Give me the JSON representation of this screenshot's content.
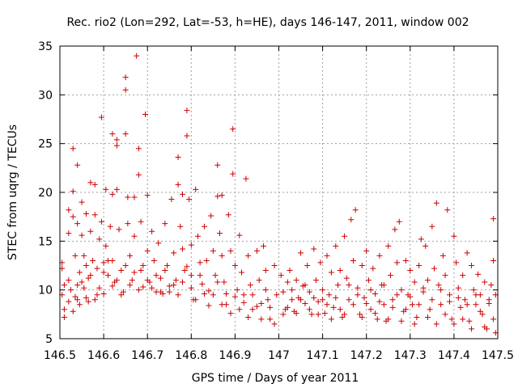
{
  "chart_data": {
    "type": "scatter",
    "title": "Rec. rio2 (Lon=292, Lat=-53, h=HE), days 146-147, 2011, window 002",
    "xlabel": "GPS time / Days of year 2011",
    "ylabel": "STEC from uqrg / TECUs",
    "xlim": [
      146.5,
      147.5
    ],
    "ylim": [
      5,
      35
    ],
    "xticks": [
      146.5,
      146.6,
      146.7,
      146.8,
      146.9,
      147.0,
      147.1,
      147.2,
      147.3,
      147.4,
      147.5
    ],
    "xtick_labels": [
      "146.5",
      "146.6",
      "146.7",
      "146.8",
      "146.9",
      "147",
      "147.1",
      "147.2",
      "147.3",
      "147.4",
      "147.5"
    ],
    "yticks": [
      5,
      10,
      15,
      20,
      25,
      30,
      35
    ],
    "ytick_labels": [
      "5",
      "10",
      "15",
      "20",
      "25",
      "30",
      "35"
    ],
    "grid": true,
    "marker": "plus",
    "point_color": "#cc0000",
    "points": [
      [
        146.505,
        12.8
      ],
      [
        146.505,
        12.2
      ],
      [
        146.505,
        9.5
      ],
      [
        146.51,
        8.0
      ],
      [
        146.51,
        7.2
      ],
      [
        146.52,
        18.2
      ],
      [
        146.52,
        15.8
      ],
      [
        146.52,
        11.0
      ],
      [
        146.525,
        10.0
      ],
      [
        146.53,
        24.5
      ],
      [
        146.53,
        20.1
      ],
      [
        146.53,
        17.5
      ],
      [
        146.535,
        13.5
      ],
      [
        146.535,
        9.3
      ],
      [
        146.54,
        22.8
      ],
      [
        146.54,
        16.8
      ],
      [
        146.54,
        10.5
      ],
      [
        146.545,
        11.8
      ],
      [
        146.545,
        8.5
      ],
      [
        146.55,
        19.0
      ],
      [
        146.55,
        15.6
      ],
      [
        146.555,
        13.5
      ],
      [
        146.555,
        10.2
      ],
      [
        146.56,
        17.8
      ],
      [
        146.56,
        12.5
      ],
      [
        146.565,
        11.2
      ],
      [
        146.565,
        8.8
      ],
      [
        146.57,
        21.0
      ],
      [
        146.57,
        16.0
      ],
      [
        146.575,
        13.0
      ],
      [
        146.58,
        20.8
      ],
      [
        146.58,
        17.7
      ],
      [
        146.585,
        12.2
      ],
      [
        146.585,
        9.5
      ],
      [
        146.59,
        15.2
      ],
      [
        146.595,
        27.7
      ],
      [
        146.595,
        17.0
      ],
      [
        146.6,
        12.8
      ],
      [
        146.6,
        9.6
      ],
      [
        146.605,
        20.3
      ],
      [
        146.605,
        14.5
      ],
      [
        146.61,
        11.5
      ],
      [
        146.615,
        16.5
      ],
      [
        146.62,
        26.0
      ],
      [
        146.62,
        19.8
      ],
      [
        146.62,
        13.0
      ],
      [
        146.625,
        10.8
      ],
      [
        146.63,
        25.4
      ],
      [
        146.63,
        24.8
      ],
      [
        146.63,
        20.3
      ],
      [
        146.635,
        16.2
      ],
      [
        146.64,
        12.0
      ],
      [
        146.645,
        9.8
      ],
      [
        146.65,
        31.8
      ],
      [
        146.65,
        30.5
      ],
      [
        146.65,
        26.0
      ],
      [
        146.655,
        19.5
      ],
      [
        146.655,
        16.8
      ],
      [
        146.66,
        13.5
      ],
      [
        146.665,
        11.0
      ],
      [
        146.67,
        19.5
      ],
      [
        146.67,
        15.5
      ],
      [
        146.675,
        34.0
      ],
      [
        146.68,
        24.5
      ],
      [
        146.68,
        21.8
      ],
      [
        146.685,
        17.0
      ],
      [
        146.685,
        12.0
      ],
      [
        146.69,
        10.3
      ],
      [
        146.695,
        28.0
      ],
      [
        146.7,
        19.7
      ],
      [
        146.7,
        14.0
      ],
      [
        146.705,
        10.8
      ],
      [
        146.71,
        16.0
      ],
      [
        146.715,
        13.0
      ],
      [
        146.72,
        9.8
      ],
      [
        146.725,
        14.8
      ],
      [
        146.73,
        11.2
      ],
      [
        146.735,
        9.6
      ],
      [
        146.74,
        16.8
      ],
      [
        146.745,
        12.5
      ],
      [
        146.75,
        10.4
      ],
      [
        146.755,
        19.3
      ],
      [
        146.76,
        13.8
      ],
      [
        146.765,
        11.0
      ],
      [
        146.77,
        23.6
      ],
      [
        146.77,
        20.8
      ],
      [
        146.775,
        16.5
      ],
      [
        146.78,
        19.8
      ],
      [
        146.78,
        14.2
      ],
      [
        146.785,
        12.0
      ],
      [
        146.79,
        28.4
      ],
      [
        146.79,
        25.8
      ],
      [
        146.795,
        19.3
      ],
      [
        146.8,
        14.6
      ],
      [
        146.8,
        11.5
      ],
      [
        146.805,
        9.0
      ],
      [
        146.81,
        20.3
      ],
      [
        146.815,
        15.5
      ],
      [
        146.82,
        12.8
      ],
      [
        146.825,
        10.6
      ],
      [
        146.83,
        16.5
      ],
      [
        146.835,
        13.0
      ],
      [
        146.84,
        9.9
      ],
      [
        146.845,
        17.6
      ],
      [
        146.85,
        14.0
      ],
      [
        146.855,
        11.5
      ],
      [
        146.86,
        22.8
      ],
      [
        146.86,
        19.6
      ],
      [
        146.865,
        15.8
      ],
      [
        146.87,
        19.7
      ],
      [
        146.87,
        13.5
      ],
      [
        146.875,
        10.8
      ],
      [
        146.88,
        8.5
      ],
      [
        146.885,
        17.7
      ],
      [
        146.89,
        14.0
      ],
      [
        146.895,
        26.5
      ],
      [
        146.895,
        21.9
      ],
      [
        146.9,
        12.5
      ],
      [
        146.905,
        10.0
      ],
      [
        146.91,
        15.6
      ],
      [
        146.915,
        11.8
      ],
      [
        146.92,
        8.7
      ],
      [
        146.925,
        21.4
      ],
      [
        146.93,
        13.5
      ],
      [
        146.935,
        10.5
      ],
      [
        146.94,
        8.0
      ],
      [
        146.95,
        14.0
      ],
      [
        146.955,
        11.0
      ],
      [
        146.96,
        8.6
      ],
      [
        146.965,
        14.5
      ],
      [
        146.97,
        12.0
      ],
      [
        146.975,
        9.0
      ],
      [
        146.98,
        7.0
      ],
      [
        146.99,
        12.5
      ],
      [
        146.995,
        9.5
      ],
      [
        146.51,
        10.5
      ],
      [
        146.52,
        8.8
      ],
      [
        146.53,
        7.8
      ],
      [
        146.54,
        9.0
      ],
      [
        146.55,
        10.8
      ],
      [
        146.56,
        9.2
      ],
      [
        146.57,
        11.5
      ],
      [
        146.58,
        9.0
      ],
      [
        146.59,
        10.2
      ],
      [
        146.6,
        11.8
      ],
      [
        146.61,
        13.0
      ],
      [
        146.62,
        10.4
      ],
      [
        146.63,
        11.0
      ],
      [
        146.64,
        9.5
      ],
      [
        146.65,
        12.5
      ],
      [
        146.66,
        10.5
      ],
      [
        146.67,
        11.8
      ],
      [
        146.68,
        10.0
      ],
      [
        146.69,
        12.5
      ],
      [
        146.7,
        11.0
      ],
      [
        146.71,
        10.2
      ],
      [
        146.72,
        11.5
      ],
      [
        146.73,
        9.8
      ],
      [
        146.74,
        12.0
      ],
      [
        146.75,
        9.8
      ],
      [
        146.76,
        10.5
      ],
      [
        146.77,
        9.5
      ],
      [
        146.78,
        10.8
      ],
      [
        146.79,
        12.4
      ],
      [
        146.8,
        10.2
      ],
      [
        146.81,
        9.0
      ],
      [
        146.82,
        11.5
      ],
      [
        146.83,
        9.6
      ],
      [
        146.84,
        8.4
      ],
      [
        146.85,
        9.5
      ],
      [
        146.86,
        10.8
      ],
      [
        146.87,
        8.5
      ],
      [
        146.88,
        9.6
      ],
      [
        146.89,
        7.6
      ],
      [
        146.9,
        9.3
      ],
      [
        146.91,
        8.0
      ],
      [
        146.92,
        9.5
      ],
      [
        146.93,
        7.2
      ],
      [
        146.94,
        9.5
      ],
      [
        146.95,
        8.3
      ],
      [
        146.96,
        7.0
      ],
      [
        146.97,
        10.0
      ],
      [
        146.98,
        8.2
      ],
      [
        146.99,
        6.5
      ],
      [
        147.005,
        11.5
      ],
      [
        147.01,
        9.8
      ],
      [
        147.015,
        8.0
      ],
      [
        147.02,
        10.8
      ],
      [
        147.025,
        12.0
      ],
      [
        147.03,
        9.0
      ],
      [
        147.035,
        7.8
      ],
      [
        147.04,
        11.0
      ],
      [
        147.045,
        9.2
      ],
      [
        147.05,
        13.8
      ],
      [
        147.055,
        10.4
      ],
      [
        147.06,
        8.6
      ],
      [
        147.065,
        12.5
      ],
      [
        147.07,
        9.8
      ],
      [
        147.075,
        7.5
      ],
      [
        147.08,
        14.2
      ],
      [
        147.085,
        11.0
      ],
      [
        147.09,
        8.8
      ],
      [
        147.095,
        12.8
      ],
      [
        147.1,
        10.0
      ],
      [
        147.105,
        7.6
      ],
      [
        147.11,
        13.5
      ],
      [
        147.115,
        9.5
      ],
      [
        147.12,
        11.8
      ],
      [
        147.125,
        8.2
      ],
      [
        147.13,
        14.5
      ],
      [
        147.135,
        10.5
      ],
      [
        147.14,
        12.0
      ],
      [
        147.145,
        7.2
      ],
      [
        147.15,
        15.5
      ],
      [
        147.155,
        11.2
      ],
      [
        147.16,
        9.0
      ],
      [
        147.165,
        17.2
      ],
      [
        147.17,
        13.0
      ],
      [
        147.175,
        18.2
      ],
      [
        147.18,
        10.2
      ],
      [
        147.185,
        7.5
      ],
      [
        147.19,
        12.5
      ],
      [
        147.195,
        9.2
      ],
      [
        147.2,
        14.0
      ],
      [
        147.205,
        11.0
      ],
      [
        147.21,
        8.0
      ],
      [
        147.215,
        12.2
      ],
      [
        147.22,
        9.6
      ],
      [
        147.225,
        7.0
      ],
      [
        147.23,
        13.5
      ],
      [
        147.235,
        10.5
      ],
      [
        147.24,
        8.5
      ],
      [
        147.245,
        6.8
      ],
      [
        147.25,
        14.5
      ],
      [
        147.255,
        11.5
      ],
      [
        147.26,
        9.0
      ],
      [
        147.265,
        16.2
      ],
      [
        147.27,
        12.8
      ],
      [
        147.275,
        17.0
      ],
      [
        147.28,
        10.0
      ],
      [
        147.285,
        7.8
      ],
      [
        147.29,
        13.0
      ],
      [
        147.295,
        9.5
      ],
      [
        147.3,
        12.0
      ],
      [
        147.305,
        8.5
      ],
      [
        147.31,
        10.8
      ],
      [
        147.315,
        7.2
      ],
      [
        147.32,
        12.5
      ],
      [
        147.325,
        15.2
      ],
      [
        147.33,
        9.8
      ],
      [
        147.335,
        14.5
      ],
      [
        147.34,
        11.0
      ],
      [
        147.345,
        8.0
      ],
      [
        147.35,
        16.5
      ],
      [
        147.355,
        12.2
      ],
      [
        147.36,
        18.9
      ],
      [
        147.365,
        10.5
      ],
      [
        147.37,
        8.5
      ],
      [
        147.375,
        13.5
      ],
      [
        147.38,
        11.5
      ],
      [
        147.385,
        18.2
      ],
      [
        147.39,
        9.5
      ],
      [
        147.395,
        7.0
      ],
      [
        147.4,
        15.5
      ],
      [
        147.405,
        12.8
      ],
      [
        147.41,
        10.2
      ],
      [
        147.415,
        8.2
      ],
      [
        147.42,
        11.5
      ],
      [
        147.425,
        9.0
      ],
      [
        147.43,
        13.8
      ],
      [
        147.435,
        6.8
      ],
      [
        147.44,
        12.5
      ],
      [
        147.445,
        10.0
      ],
      [
        147.45,
        8.5
      ],
      [
        147.455,
        11.6
      ],
      [
        147.46,
        9.5
      ],
      [
        147.465,
        7.5
      ],
      [
        147.47,
        10.8
      ],
      [
        147.475,
        6.0
      ],
      [
        147.48,
        8.6
      ],
      [
        147.485,
        10.5
      ],
      [
        147.49,
        17.3
      ],
      [
        147.49,
        13.0
      ],
      [
        147.495,
        9.5
      ],
      [
        147.495,
        5.6
      ],
      [
        147.01,
        7.5
      ],
      [
        147.02,
        8.2
      ],
      [
        147.03,
        10.0
      ],
      [
        147.04,
        7.6
      ],
      [
        147.05,
        9.0
      ],
      [
        147.06,
        10.5
      ],
      [
        147.07,
        8.0
      ],
      [
        147.08,
        9.2
      ],
      [
        147.09,
        7.5
      ],
      [
        147.1,
        9.0
      ],
      [
        147.11,
        8.5
      ],
      [
        147.12,
        7.0
      ],
      [
        147.13,
        9.2
      ],
      [
        147.14,
        8.0
      ],
      [
        147.15,
        7.5
      ],
      [
        147.16,
        10.5
      ],
      [
        147.17,
        8.5
      ],
      [
        147.18,
        9.5
      ],
      [
        147.19,
        7.2
      ],
      [
        147.2,
        8.6
      ],
      [
        147.21,
        10.0
      ],
      [
        147.22,
        7.6
      ],
      [
        147.23,
        8.8
      ],
      [
        147.24,
        10.5
      ],
      [
        147.25,
        7.0
      ],
      [
        147.26,
        8.2
      ],
      [
        147.27,
        9.5
      ],
      [
        147.28,
        6.8
      ],
      [
        147.29,
        8.0
      ],
      [
        147.3,
        9.3
      ],
      [
        147.31,
        6.5
      ],
      [
        147.32,
        8.5
      ],
      [
        147.33,
        10.2
      ],
      [
        147.34,
        7.2
      ],
      [
        147.35,
        9.0
      ],
      [
        147.36,
        6.5
      ],
      [
        147.37,
        10.0
      ],
      [
        147.38,
        7.5
      ],
      [
        147.39,
        8.8
      ],
      [
        147.4,
        6.5
      ],
      [
        147.41,
        9.2
      ],
      [
        147.42,
        7.0
      ],
      [
        147.43,
        8.5
      ],
      [
        147.44,
        6.0
      ],
      [
        147.45,
        9.5
      ],
      [
        147.46,
        7.8
      ],
      [
        147.47,
        6.2
      ],
      [
        147.48,
        9.0
      ],
      [
        147.49,
        7.0
      ]
    ]
  }
}
